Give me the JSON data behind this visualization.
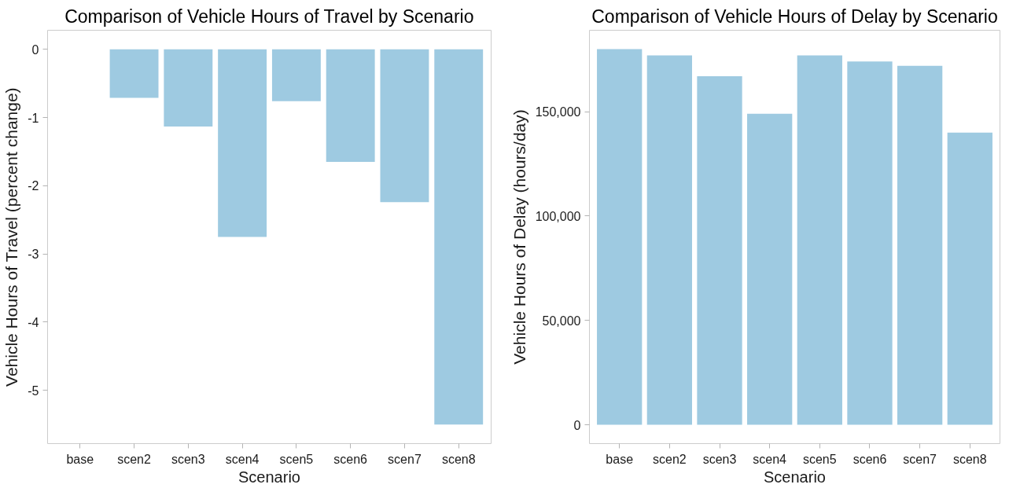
{
  "chart_data": [
    {
      "type": "bar",
      "title": "Comparison of Vehicle Hours of Travel by Scenario",
      "xlabel": "Scenario",
      "ylabel": "Vehicle Hours of Travel (percent change)",
      "categories": [
        "base",
        "scen2",
        "scen3",
        "scen4",
        "scen5",
        "scen6",
        "scen7",
        "scen8"
      ],
      "values": [
        0,
        -0.71,
        -1.13,
        -2.75,
        -0.76,
        -1.65,
        -2.24,
        -5.5
      ],
      "color": "#9ecae1",
      "ylim": [
        -5.78,
        0.28
      ],
      "yticks": [
        -5,
        -4,
        -3,
        -2,
        -1,
        0
      ]
    },
    {
      "type": "bar",
      "title": "Comparison of Vehicle Hours of Delay by Scenario",
      "xlabel": "Scenario",
      "ylabel": "Vehicle Hours of Delay (hours/day)",
      "categories": [
        "base",
        "scen2",
        "scen3",
        "scen4",
        "scen5",
        "scen6",
        "scen7",
        "scen8"
      ],
      "values": [
        180000,
        177000,
        167000,
        149000,
        177000,
        174000,
        172000,
        140000
      ],
      "color": "#9ecae1",
      "ylim": [
        -9000,
        189000
      ],
      "yticks": [
        0,
        {
          "value": 50000,
          "label": "50,000"
        },
        {
          "value": 100000,
          "label": "100,000"
        },
        {
          "value": 150000,
          "label": "150,000"
        }
      ]
    }
  ]
}
